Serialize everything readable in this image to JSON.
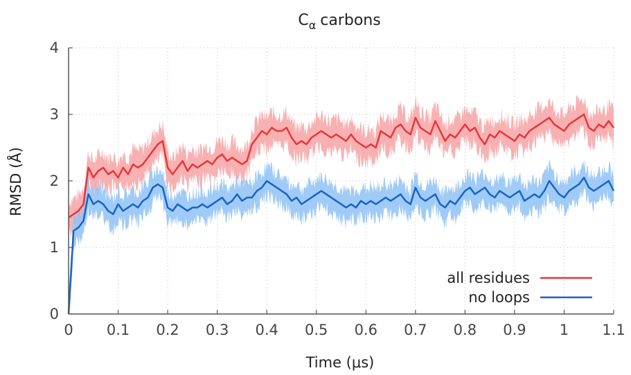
{
  "chart_data": {
    "type": "line",
    "title": "C",
    "title_subscript": "α",
    "title_rest": "carbons",
    "xlabel": "Time (μs)",
    "ylabel": "RMSD (Å)",
    "xlim": [
      0,
      1.1
    ],
    "ylim": [
      0,
      4
    ],
    "xticks": [
      0,
      0.1,
      0.2,
      0.3,
      0.4,
      0.5,
      0.6,
      0.7,
      0.8,
      0.9,
      1,
      1.1
    ],
    "xtick_labels": [
      "0",
      "0.1",
      "0.2",
      "0.3",
      "0.4",
      "0.5",
      "0.6",
      "0.7",
      "0.8",
      "0.9",
      "1",
      "1.1"
    ],
    "yticks": [
      0,
      1,
      2,
      3,
      4
    ],
    "ytick_labels": [
      "0",
      "1",
      "2",
      "3",
      "4"
    ],
    "grid": true,
    "legend_position": "bottom-right",
    "series": [
      {
        "name": "all residues",
        "color": "#e8363a",
        "band_color": "#f7a3a5",
        "x": [
          0,
          0.01,
          0.02,
          0.03,
          0.04,
          0.05,
          0.06,
          0.07,
          0.08,
          0.09,
          0.1,
          0.11,
          0.12,
          0.13,
          0.14,
          0.15,
          0.16,
          0.17,
          0.18,
          0.19,
          0.2,
          0.21,
          0.22,
          0.23,
          0.24,
          0.25,
          0.26,
          0.27,
          0.28,
          0.29,
          0.3,
          0.31,
          0.32,
          0.33,
          0.34,
          0.35,
          0.36,
          0.37,
          0.38,
          0.39,
          0.4,
          0.41,
          0.42,
          0.43,
          0.44,
          0.45,
          0.46,
          0.47,
          0.48,
          0.49,
          0.5,
          0.51,
          0.52,
          0.53,
          0.54,
          0.55,
          0.56,
          0.57,
          0.58,
          0.59,
          0.6,
          0.61,
          0.62,
          0.63,
          0.64,
          0.65,
          0.66,
          0.67,
          0.68,
          0.69,
          0.7,
          0.71,
          0.72,
          0.73,
          0.74,
          0.75,
          0.76,
          0.77,
          0.78,
          0.79,
          0.8,
          0.81,
          0.82,
          0.83,
          0.84,
          0.85,
          0.86,
          0.87,
          0.88,
          0.89,
          0.9,
          0.91,
          0.92,
          0.93,
          0.94,
          0.95,
          0.96,
          0.97,
          0.98,
          0.99,
          1.0,
          1.01,
          1.02,
          1.03,
          1.04,
          1.05,
          1.06,
          1.07,
          1.08,
          1.09,
          1.1
        ],
        "values": [
          1.45,
          1.5,
          1.55,
          1.65,
          2.2,
          2.05,
          2.15,
          2.2,
          2.1,
          2.15,
          2.05,
          2.2,
          2.1,
          2.25,
          2.2,
          2.25,
          2.35,
          2.45,
          2.55,
          2.6,
          2.2,
          2.1,
          2.2,
          2.3,
          2.15,
          2.25,
          2.2,
          2.25,
          2.3,
          2.25,
          2.35,
          2.4,
          2.3,
          2.35,
          2.3,
          2.25,
          2.3,
          2.55,
          2.65,
          2.75,
          2.7,
          2.8,
          2.75,
          2.75,
          2.8,
          2.65,
          2.55,
          2.6,
          2.55,
          2.65,
          2.7,
          2.75,
          2.7,
          2.65,
          2.7,
          2.65,
          2.6,
          2.7,
          2.6,
          2.55,
          2.5,
          2.55,
          2.5,
          2.75,
          2.7,
          2.65,
          2.8,
          2.85,
          2.75,
          2.7,
          2.95,
          2.8,
          2.75,
          2.7,
          2.9,
          2.75,
          2.6,
          2.7,
          2.65,
          2.75,
          2.85,
          2.75,
          2.8,
          2.65,
          2.55,
          2.7,
          2.65,
          2.75,
          2.7,
          2.65,
          2.6,
          2.7,
          2.65,
          2.75,
          2.8,
          2.85,
          2.9,
          2.95,
          2.85,
          2.8,
          2.75,
          2.85,
          2.9,
          2.95,
          3.0,
          2.8,
          2.75,
          2.85,
          2.8,
          2.9,
          2.8
        ],
        "band_spread": 0.28
      },
      {
        "name": "no loops",
        "color": "#1764c4",
        "band_color": "#8fc2f6",
        "x": [
          0,
          0.01,
          0.02,
          0.03,
          0.04,
          0.05,
          0.06,
          0.07,
          0.08,
          0.09,
          0.1,
          0.11,
          0.12,
          0.13,
          0.14,
          0.15,
          0.16,
          0.17,
          0.18,
          0.19,
          0.2,
          0.21,
          0.22,
          0.23,
          0.24,
          0.25,
          0.26,
          0.27,
          0.28,
          0.29,
          0.3,
          0.31,
          0.32,
          0.33,
          0.34,
          0.35,
          0.36,
          0.37,
          0.38,
          0.39,
          0.4,
          0.41,
          0.42,
          0.43,
          0.44,
          0.45,
          0.46,
          0.47,
          0.48,
          0.49,
          0.5,
          0.51,
          0.52,
          0.53,
          0.54,
          0.55,
          0.56,
          0.57,
          0.58,
          0.59,
          0.6,
          0.61,
          0.62,
          0.63,
          0.64,
          0.65,
          0.66,
          0.67,
          0.68,
          0.69,
          0.7,
          0.71,
          0.72,
          0.73,
          0.74,
          0.75,
          0.76,
          0.77,
          0.78,
          0.79,
          0.8,
          0.81,
          0.82,
          0.83,
          0.84,
          0.85,
          0.86,
          0.87,
          0.88,
          0.89,
          0.9,
          0.91,
          0.92,
          0.93,
          0.94,
          0.95,
          0.96,
          0.97,
          0.98,
          0.99,
          1.0,
          1.01,
          1.02,
          1.03,
          1.04,
          1.05,
          1.06,
          1.07,
          1.08,
          1.09,
          1.1
        ],
        "values": [
          0,
          1.25,
          1.3,
          1.4,
          1.8,
          1.65,
          1.7,
          1.65,
          1.55,
          1.5,
          1.65,
          1.55,
          1.6,
          1.65,
          1.6,
          1.7,
          1.75,
          1.9,
          1.95,
          1.9,
          1.6,
          1.55,
          1.65,
          1.6,
          1.55,
          1.6,
          1.6,
          1.65,
          1.6,
          1.65,
          1.7,
          1.75,
          1.65,
          1.7,
          1.8,
          1.7,
          1.75,
          1.75,
          1.85,
          1.9,
          2.0,
          1.95,
          1.9,
          1.85,
          1.8,
          1.7,
          1.75,
          1.65,
          1.7,
          1.75,
          1.8,
          1.85,
          1.8,
          1.75,
          1.7,
          1.65,
          1.6,
          1.65,
          1.6,
          1.7,
          1.65,
          1.7,
          1.65,
          1.7,
          1.75,
          1.7,
          1.75,
          1.8,
          1.7,
          1.65,
          1.9,
          1.75,
          1.7,
          1.75,
          1.8,
          1.65,
          1.6,
          1.7,
          1.65,
          1.75,
          1.85,
          1.9,
          1.8,
          1.85,
          1.9,
          1.8,
          1.75,
          1.85,
          1.8,
          1.75,
          1.8,
          1.85,
          1.7,
          1.75,
          1.8,
          1.75,
          1.85,
          2.0,
          1.9,
          1.8,
          1.75,
          1.85,
          1.9,
          1.95,
          2.05,
          1.9,
          1.85,
          1.9,
          1.95,
          2.0,
          1.85
        ],
        "band_spread": 0.26
      }
    ]
  }
}
